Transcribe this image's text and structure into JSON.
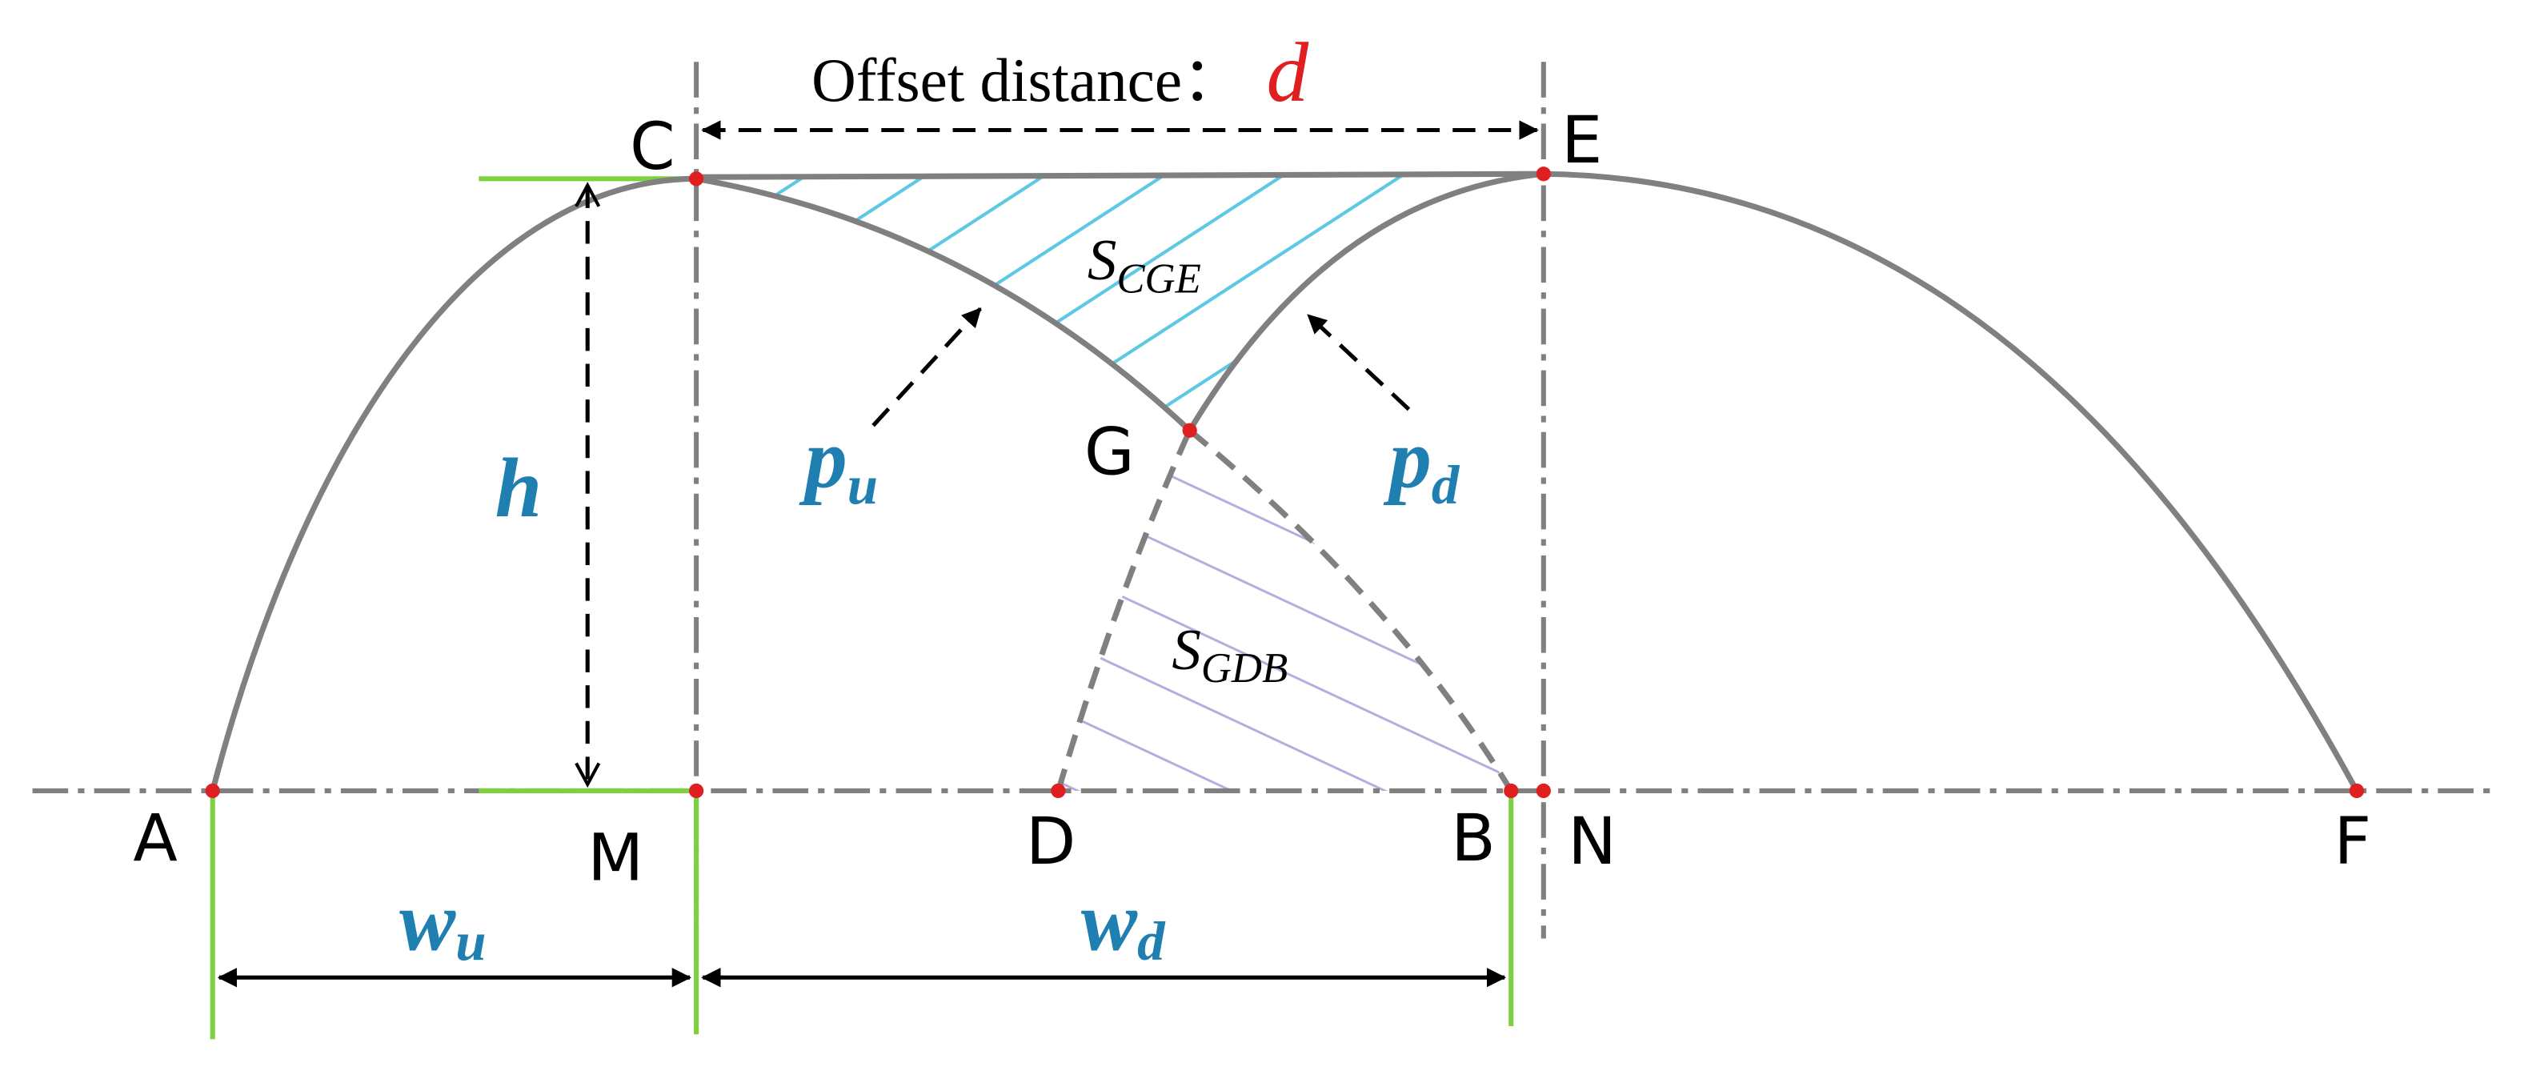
{
  "title": {
    "text": "Offset distance：",
    "variable": "d"
  },
  "point_labels": [
    "A",
    "M",
    "D",
    "B",
    "N",
    "F",
    "C",
    "E",
    "G"
  ],
  "height_label": "h",
  "curve_labels": [
    {
      "main": "p",
      "sub": "u"
    },
    {
      "main": "p",
      "sub": "d"
    }
  ],
  "width_labels": [
    {
      "main": "w",
      "sub": "u"
    },
    {
      "main": "w",
      "sub": "d"
    }
  ],
  "area_labels": [
    {
      "main": "S",
      "sub": "CGE"
    },
    {
      "main": "S",
      "sub": "GDB"
    }
  ]
}
